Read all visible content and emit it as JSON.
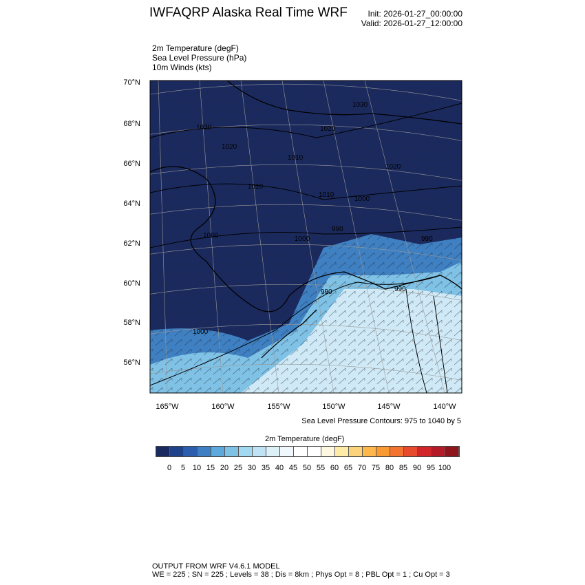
{
  "header": {
    "title": "IWFAQRP Alaska Real Time WRF",
    "init": "Init: 2026-01-27_00:00:00",
    "valid": "Valid: 2026-01-27_12:00:00"
  },
  "fields": [
    "2m Temperature   (degF)",
    "Sea Level Pressure   (hPa)",
    "10m Winds   (kts)"
  ],
  "map": {
    "lat_labels": [
      "70°N",
      "68°N",
      "66°N",
      "64°N",
      "62°N",
      "60°N",
      "58°N",
      "56°N"
    ],
    "lon_labels": [
      "165°W",
      "160°W",
      "155°W",
      "150°W",
      "145°W",
      "140°W"
    ],
    "contour_labels": [
      "1030",
      "1030",
      "1020",
      "1020",
      "1020",
      "1010",
      "1010",
      "1010",
      "1000",
      "1000",
      "1000",
      "1000",
      "990",
      "990",
      "990",
      "990"
    ],
    "colors": {
      "cold": "#1b2a5e",
      "mid": "#3f80c2",
      "warm_water": "#cfeaf6"
    }
  },
  "contour_note": "Sea Level Pressure Contours: 975 to 1040 by 5",
  "colorbar": {
    "title": "2m Temperature  (degF)",
    "labels": [
      "0",
      "5",
      "10",
      "15",
      "20",
      "25",
      "30",
      "35",
      "40",
      "45",
      "50",
      "55",
      "60",
      "65",
      "70",
      "75",
      "80",
      "85",
      "90",
      "95",
      "100"
    ],
    "colors": [
      "#1b2a5e",
      "#1f4288",
      "#2b5fad",
      "#3f80c2",
      "#5ea9dc",
      "#7fc2e6",
      "#a1d9f3",
      "#bfe3f4",
      "#dcf0f8",
      "#f1f8fc",
      "#ffffff",
      "#ffffff",
      "#fff8e1",
      "#feeba8",
      "#fcd27a",
      "#fdb74a",
      "#f99a33",
      "#f37431",
      "#e74b2e",
      "#d2252a",
      "#b51b27",
      "#8e1519"
    ]
  },
  "footer": {
    "line1": "OUTPUT FROM WRF V4.6.1 MODEL",
    "line2": "WE = 225 ; SN = 225 ; Levels = 38 ; Dis = 8km ; Phys Opt = 8 ; PBL Opt = 1 ; Cu Opt = 3"
  }
}
